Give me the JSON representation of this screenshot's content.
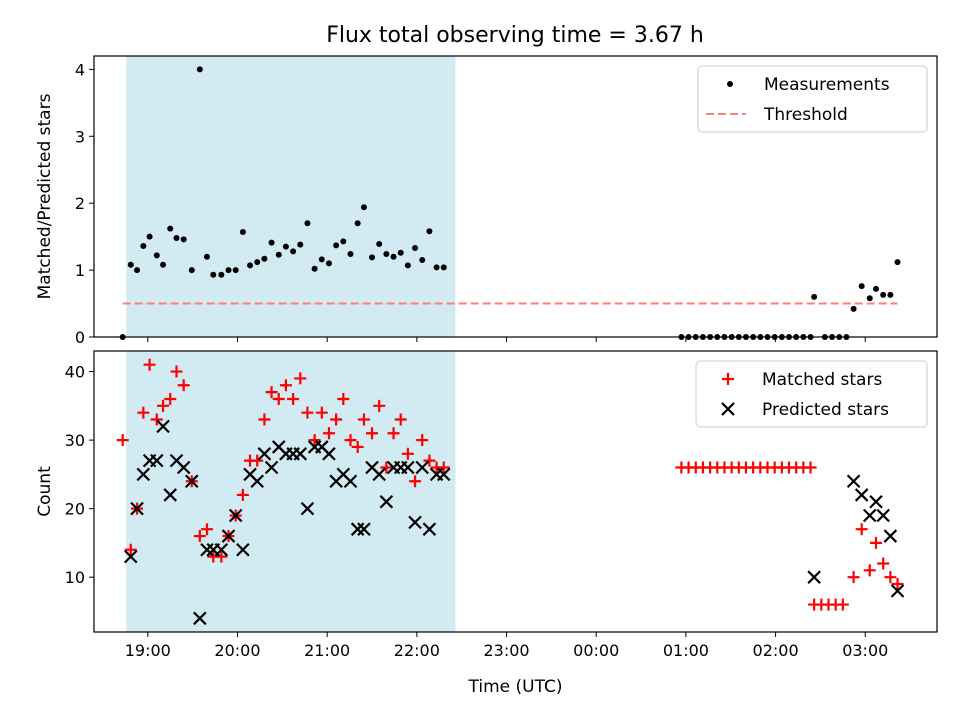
{
  "title": "Flux total observing time = 3.67 h",
  "colors": {
    "highlight": "#add8e6",
    "threshold": "#ff7f7f",
    "matched": "#ff0000",
    "predicted": "#000000",
    "measurement": "#000000"
  },
  "chart_data": [
    {
      "type": "scatter",
      "panel": "top",
      "ylabel": "Matched/Predicted stars",
      "xlabel": "",
      "x_units": "hours since 18:00 UTC (axis ticks printed as clock times)",
      "xlim": [
        18.4,
        27.8
      ],
      "ylim": [
        0,
        4.2
      ],
      "yticks": [
        "0",
        "1",
        "2",
        "3",
        "4"
      ],
      "grid": false,
      "legend_position": "top-right",
      "highlight_x": [
        18.76,
        22.43
      ],
      "series": [
        {
          "name": "Measurements",
          "marker": "dot",
          "points": [
            [
              18.72,
              0.0
            ],
            [
              18.81,
              1.08
            ],
            [
              18.88,
              1.0
            ],
            [
              18.95,
              1.36
            ],
            [
              19.02,
              1.5
            ],
            [
              19.1,
              1.22
            ],
            [
              19.17,
              1.08
            ],
            [
              19.25,
              1.62
            ],
            [
              19.32,
              1.48
            ],
            [
              19.4,
              1.46
            ],
            [
              19.49,
              1.0
            ],
            [
              19.58,
              4.0
            ],
            [
              19.66,
              1.2
            ],
            [
              19.73,
              0.93
            ],
            [
              19.82,
              0.93
            ],
            [
              19.9,
              1.0
            ],
            [
              19.98,
              1.0
            ],
            [
              20.06,
              1.57
            ],
            [
              20.14,
              1.07
            ],
            [
              20.22,
              1.12
            ],
            [
              20.3,
              1.17
            ],
            [
              20.38,
              1.41
            ],
            [
              20.46,
              1.23
            ],
            [
              20.54,
              1.35
            ],
            [
              20.62,
              1.28
            ],
            [
              20.7,
              1.38
            ],
            [
              20.78,
              1.7
            ],
            [
              20.86,
              1.02
            ],
            [
              20.94,
              1.16
            ],
            [
              21.02,
              1.1
            ],
            [
              21.1,
              1.37
            ],
            [
              21.18,
              1.43
            ],
            [
              21.26,
              1.24
            ],
            [
              21.34,
              1.7
            ],
            [
              21.41,
              1.94
            ],
            [
              21.5,
              1.19
            ],
            [
              21.58,
              1.39
            ],
            [
              21.66,
              1.24
            ],
            [
              21.74,
              1.2
            ],
            [
              21.82,
              1.26
            ],
            [
              21.9,
              1.07
            ],
            [
              21.98,
              1.33
            ],
            [
              22.06,
              1.15
            ],
            [
              22.14,
              1.58
            ],
            [
              22.22,
              1.04
            ],
            [
              22.3,
              1.04
            ],
            [
              24.95,
              0.0
            ],
            [
              25.03,
              0.0
            ],
            [
              25.11,
              0.0
            ],
            [
              25.19,
              0.0
            ],
            [
              25.27,
              0.0
            ],
            [
              25.35,
              0.0
            ],
            [
              25.43,
              0.0
            ],
            [
              25.51,
              0.0
            ],
            [
              25.59,
              0.0
            ],
            [
              25.67,
              0.0
            ],
            [
              25.75,
              0.0
            ],
            [
              25.83,
              0.0
            ],
            [
              25.91,
              0.0
            ],
            [
              25.99,
              0.0
            ],
            [
              26.07,
              0.0
            ],
            [
              26.15,
              0.0
            ],
            [
              26.23,
              0.0
            ],
            [
              26.31,
              0.0
            ],
            [
              26.39,
              0.0
            ],
            [
              26.43,
              0.6
            ],
            [
              26.55,
              0.0
            ],
            [
              26.63,
              0.0
            ],
            [
              26.71,
              0.0
            ],
            [
              26.79,
              0.0
            ],
            [
              26.87,
              0.42
            ],
            [
              26.96,
              0.76
            ],
            [
              27.05,
              0.58
            ],
            [
              27.12,
              0.72
            ],
            [
              27.2,
              0.63
            ],
            [
              27.28,
              0.63
            ],
            [
              27.36,
              1.12
            ]
          ]
        },
        {
          "name": "Threshold",
          "style": "dashed",
          "points": [
            [
              18.72,
              0.5
            ],
            [
              27.36,
              0.5
            ]
          ]
        }
      ]
    },
    {
      "type": "scatter",
      "panel": "bottom",
      "ylabel": "Count",
      "xlabel": "Time (UTC)",
      "xlim": [
        18.4,
        27.8
      ],
      "ylim": [
        2,
        43
      ],
      "yticks": [
        "10",
        "20",
        "30",
        "40"
      ],
      "xtick_values": [
        19,
        20,
        21,
        22,
        23,
        24,
        25,
        26,
        27
      ],
      "xtick_labels": [
        "19:00",
        "20:00",
        "21:00",
        "22:00",
        "23:00",
        "00:00",
        "01:00",
        "02:00",
        "03:00"
      ],
      "grid": false,
      "legend_position": "top-right",
      "highlight_x": [
        18.76,
        22.43
      ],
      "series": [
        {
          "name": "Matched stars",
          "marker": "plus",
          "points": [
            [
              18.72,
              30
            ],
            [
              18.81,
              14
            ],
            [
              18.88,
              20
            ],
            [
              18.95,
              34
            ],
            [
              19.02,
              41
            ],
            [
              19.1,
              33
            ],
            [
              19.17,
              35
            ],
            [
              19.25,
              36
            ],
            [
              19.32,
              40
            ],
            [
              19.4,
              38
            ],
            [
              19.49,
              24
            ],
            [
              19.58,
              16
            ],
            [
              19.66,
              17
            ],
            [
              19.73,
              13
            ],
            [
              19.82,
              13
            ],
            [
              19.9,
              16
            ],
            [
              19.98,
              19
            ],
            [
              20.06,
              22
            ],
            [
              20.14,
              27
            ],
            [
              20.22,
              27
            ],
            [
              20.3,
              33
            ],
            [
              20.38,
              37
            ],
            [
              20.46,
              36
            ],
            [
              20.54,
              38
            ],
            [
              20.62,
              36
            ],
            [
              20.7,
              39
            ],
            [
              20.78,
              34
            ],
            [
              20.86,
              30
            ],
            [
              20.94,
              34
            ],
            [
              21.02,
              31
            ],
            [
              21.1,
              33
            ],
            [
              21.18,
              36
            ],
            [
              21.26,
              30
            ],
            [
              21.34,
              29
            ],
            [
              21.41,
              33
            ],
            [
              21.5,
              31
            ],
            [
              21.58,
              35
            ],
            [
              21.66,
              26
            ],
            [
              21.74,
              31
            ],
            [
              21.82,
              33
            ],
            [
              21.9,
              28
            ],
            [
              21.98,
              24
            ],
            [
              22.06,
              30
            ],
            [
              22.14,
              27
            ],
            [
              22.22,
              26
            ],
            [
              22.3,
              26
            ],
            [
              24.95,
              26
            ],
            [
              25.03,
              26
            ],
            [
              25.11,
              26
            ],
            [
              25.19,
              26
            ],
            [
              25.27,
              26
            ],
            [
              25.35,
              26
            ],
            [
              25.43,
              26
            ],
            [
              25.51,
              26
            ],
            [
              25.59,
              26
            ],
            [
              25.67,
              26
            ],
            [
              25.75,
              26
            ],
            [
              25.83,
              26
            ],
            [
              25.91,
              26
            ],
            [
              25.99,
              26
            ],
            [
              26.07,
              26
            ],
            [
              26.15,
              26
            ],
            [
              26.23,
              26
            ],
            [
              26.31,
              26
            ],
            [
              26.39,
              26
            ],
            [
              26.43,
              6
            ],
            [
              26.51,
              6
            ],
            [
              26.59,
              6
            ],
            [
              26.67,
              6
            ],
            [
              26.75,
              6
            ],
            [
              26.87,
              10
            ],
            [
              26.96,
              17
            ],
            [
              27.05,
              11
            ],
            [
              27.12,
              15
            ],
            [
              27.2,
              12
            ],
            [
              27.28,
              10
            ],
            [
              27.36,
              9
            ]
          ]
        },
        {
          "name": "Predicted stars",
          "marker": "x",
          "points": [
            [
              18.81,
              13
            ],
            [
              18.88,
              20
            ],
            [
              18.95,
              25
            ],
            [
              19.02,
              27
            ],
            [
              19.1,
              27
            ],
            [
              19.17,
              32
            ],
            [
              19.25,
              22
            ],
            [
              19.32,
              27
            ],
            [
              19.4,
              26
            ],
            [
              19.49,
              24
            ],
            [
              19.58,
              4
            ],
            [
              19.66,
              14
            ],
            [
              19.73,
              14
            ],
            [
              19.82,
              14
            ],
            [
              19.9,
              16
            ],
            [
              19.98,
              19
            ],
            [
              20.06,
              14
            ],
            [
              20.14,
              25
            ],
            [
              20.22,
              24
            ],
            [
              20.3,
              28
            ],
            [
              20.38,
              26
            ],
            [
              20.46,
              29
            ],
            [
              20.54,
              28
            ],
            [
              20.62,
              28
            ],
            [
              20.7,
              28
            ],
            [
              20.78,
              20
            ],
            [
              20.86,
              29
            ],
            [
              20.94,
              29
            ],
            [
              21.02,
              28
            ],
            [
              21.1,
              24
            ],
            [
              21.18,
              25
            ],
            [
              21.26,
              24
            ],
            [
              21.34,
              17
            ],
            [
              21.41,
              17
            ],
            [
              21.5,
              26
            ],
            [
              21.58,
              25
            ],
            [
              21.66,
              21
            ],
            [
              21.74,
              26
            ],
            [
              21.82,
              26
            ],
            [
              21.9,
              26
            ],
            [
              21.98,
              18
            ],
            [
              22.06,
              26
            ],
            [
              22.14,
              17
            ],
            [
              22.22,
              25
            ],
            [
              22.3,
              25
            ],
            [
              26.43,
              10
            ],
            [
              26.87,
              24
            ],
            [
              26.96,
              22
            ],
            [
              27.05,
              19
            ],
            [
              27.12,
              21
            ],
            [
              27.2,
              19
            ],
            [
              27.28,
              16
            ],
            [
              27.36,
              8
            ]
          ]
        }
      ]
    }
  ]
}
